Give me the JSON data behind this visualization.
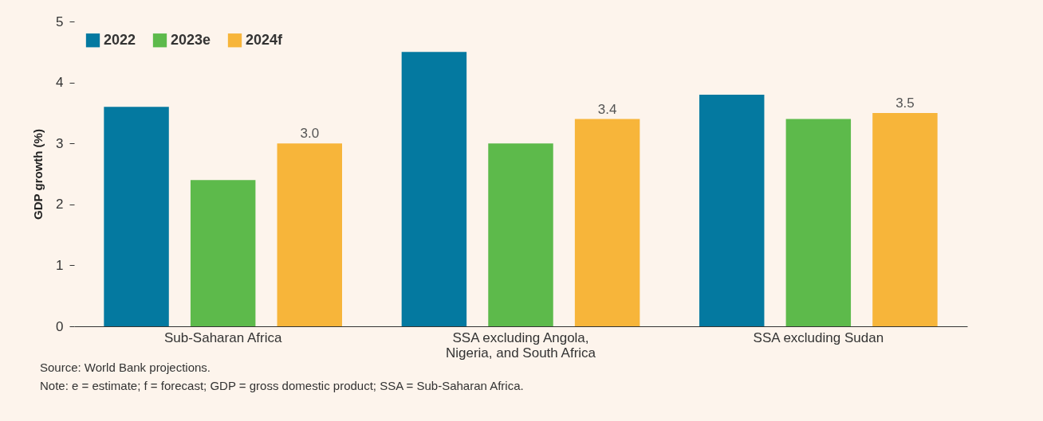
{
  "chart_data": {
    "type": "bar",
    "ylabel": "GDP growth (%)",
    "categories": [
      "Sub-Saharan Africa",
      "SSA excluding Angola, Nigeria, and South Africa",
      "SSA excluding Sudan"
    ],
    "series": [
      {
        "name": "2022",
        "color": "#0479a0",
        "values": [
          3.6,
          4.5,
          3.8
        ]
      },
      {
        "name": "2023e",
        "color": "#5dba4b",
        "values": [
          2.4,
          3.0,
          3.4
        ]
      },
      {
        "name": "2024f",
        "color": "#f7b53a",
        "values": [
          3.0,
          3.4,
          3.5
        ],
        "value_labels": [
          "3.0",
          "3.4",
          "3.5"
        ]
      }
    ],
    "ylim": [
      0,
      5
    ],
    "yticks": [
      0,
      1,
      2,
      3,
      4,
      5
    ],
    "grid": false,
    "legend": "top left",
    "annotations": [
      "Source: World Bank projections.",
      "Note: e = estimate; f = forecast; GDP = gross domestic product; SSA = Sub-Saharan Africa."
    ]
  }
}
